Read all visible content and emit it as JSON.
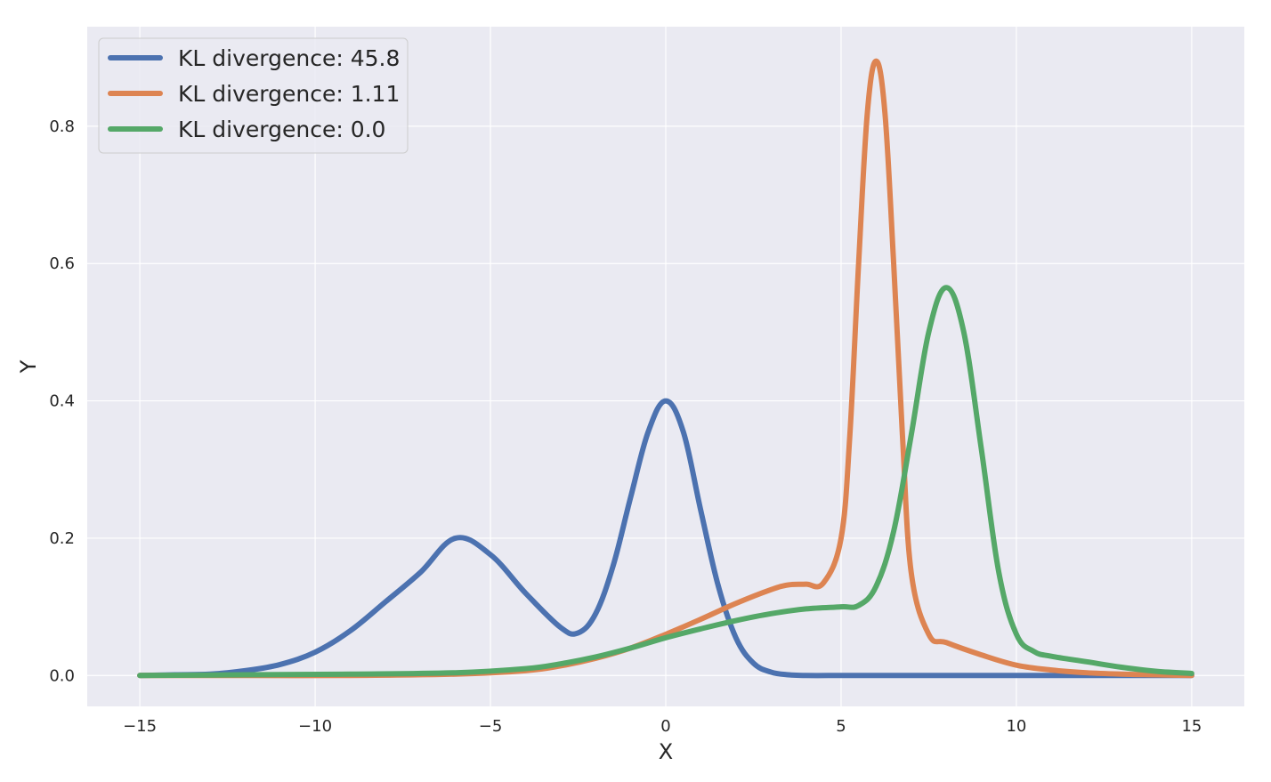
{
  "chart_data": {
    "type": "line",
    "title": "",
    "xlabel": "X",
    "ylabel": "Y",
    "xlim": [
      -16.5,
      16.5
    ],
    "ylim": [
      -0.045,
      0.945
    ],
    "xticks": [
      -15,
      -10,
      -5,
      0,
      5,
      10,
      15
    ],
    "xtick_labels": [
      "−15",
      "−10",
      "−5",
      "0",
      "5",
      "10",
      "15"
    ],
    "yticks": [
      0.0,
      0.2,
      0.4,
      0.6,
      0.8
    ],
    "ytick_labels": [
      "0.0",
      "0.2",
      "0.4",
      "0.6",
      "0.8"
    ],
    "grid": true,
    "legend_position": "top-left",
    "background_color": "#eaeaf2",
    "grid_color": "#ffffff",
    "series": [
      {
        "name": "KL divergence: 45.8",
        "color": "#4c72b0",
        "x": [
          -15,
          -14,
          -13,
          -12,
          -11,
          -10,
          -9,
          -8,
          -7,
          -6,
          -5,
          -4,
          -3,
          -2.5,
          -2,
          -1.5,
          -1,
          -0.5,
          0,
          0.5,
          1,
          1.5,
          2,
          2.5,
          3,
          3.5,
          4,
          5,
          6,
          8,
          10,
          12,
          15
        ],
        "y": [
          0.0,
          0.001,
          0.002,
          0.007,
          0.016,
          0.034,
          0.065,
          0.107,
          0.15,
          0.2,
          0.176,
          0.12,
          0.07,
          0.062,
          0.09,
          0.16,
          0.26,
          0.355,
          0.4,
          0.355,
          0.24,
          0.13,
          0.055,
          0.018,
          0.005,
          0.001,
          0.0,
          0.0,
          0.0,
          0.0,
          0.0,
          0.0,
          0.0
        ]
      },
      {
        "name": "KL divergence: 1.11",
        "color": "#dd8452",
        "x": [
          -15,
          -12,
          -9,
          -6,
          -4,
          -3,
          -2,
          -1,
          0,
          1,
          2,
          3,
          3.5,
          4,
          4.5,
          5,
          5.25,
          5.5,
          5.75,
          6,
          6.25,
          6.5,
          6.75,
          7,
          7.5,
          8,
          9,
          10,
          11,
          12,
          13,
          14,
          15
        ],
        "y": [
          0.0,
          0.0,
          0.0,
          0.002,
          0.007,
          0.014,
          0.025,
          0.04,
          0.06,
          0.082,
          0.105,
          0.125,
          0.132,
          0.133,
          0.135,
          0.2,
          0.35,
          0.6,
          0.82,
          0.895,
          0.82,
          0.6,
          0.35,
          0.15,
          0.06,
          0.048,
          0.03,
          0.015,
          0.008,
          0.004,
          0.002,
          0.001,
          0.0
        ]
      },
      {
        "name": "KL divergence: 0.0",
        "color": "#55a868",
        "x": [
          -15,
          -12,
          -9,
          -6,
          -4,
          -3,
          -2,
          -1,
          0,
          1,
          2,
          3,
          4,
          5,
          5.5,
          6,
          6.5,
          7,
          7.5,
          8,
          8.5,
          9,
          9.5,
          10,
          10.5,
          11,
          12,
          13,
          14,
          15
        ],
        "y": [
          0.0,
          0.001,
          0.002,
          0.004,
          0.01,
          0.017,
          0.027,
          0.04,
          0.055,
          0.068,
          0.08,
          0.09,
          0.097,
          0.1,
          0.102,
          0.13,
          0.21,
          0.35,
          0.5,
          0.565,
          0.5,
          0.33,
          0.15,
          0.06,
          0.035,
          0.028,
          0.02,
          0.012,
          0.006,
          0.003
        ]
      }
    ]
  }
}
